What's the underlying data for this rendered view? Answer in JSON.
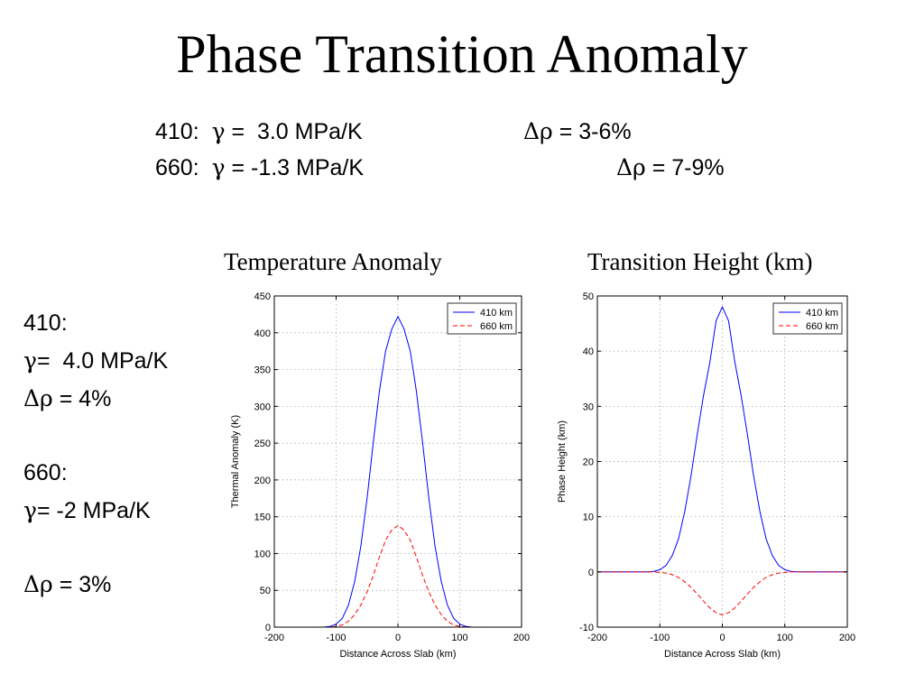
{
  "slide": {
    "title": "Phase Transition Anomaly"
  },
  "top_params": {
    "row1": {
      "prefix": "410:  ",
      "gamma_symbol": "γ",
      "gamma_text": " =  3.0 MPa/K",
      "delta_symbol": "Δρ",
      "delta_text": " = 3-6%"
    },
    "row2": {
      "prefix": "660:  ",
      "gamma_symbol": "γ",
      "gamma_text": " = -1.3 MPa/K",
      "delta_symbol": "Δρ",
      "delta_text": " = 7-9%"
    }
  },
  "side_params": {
    "l410": "410:",
    "g410_symbol": "γ",
    "g410_text": "=  4.0 MPa/K",
    "d410_symbol": "Δρ",
    "d410_text": " = 4%",
    "l660": "660:",
    "g660_symbol": "γ",
    "g660_text": "= -2 MPa/K",
    "d660_symbol": "Δρ",
    "d660_text": " = 3%"
  },
  "colors": {
    "series_410": "#0000ff",
    "series_660": "#ff0000"
  },
  "chart_data": [
    {
      "type": "line",
      "title": "Temperature Anomaly",
      "xlabel": "Distance Across Slab (km)",
      "ylabel": "Thermal Anomaly (K)",
      "xlim": [
        -200,
        200
      ],
      "ylim": [
        0,
        450
      ],
      "xticks": [
        -200,
        -100,
        0,
        100,
        200
      ],
      "yticks": [
        0,
        50,
        100,
        150,
        200,
        250,
        300,
        350,
        400,
        450
      ],
      "grid": true,
      "legend": "top-right",
      "x": [
        -200,
        -180,
        -160,
        -140,
        -120,
        -110,
        -100,
        -90,
        -80,
        -70,
        -60,
        -50,
        -40,
        -30,
        -20,
        -10,
        0,
        10,
        20,
        30,
        40,
        50,
        60,
        70,
        80,
        90,
        100,
        110,
        120,
        140,
        160,
        180,
        200
      ],
      "series": [
        {
          "name": "410 km",
          "style": "solid",
          "values": [
            0,
            0,
            0,
            0,
            0,
            1,
            4,
            12,
            30,
            62,
            110,
            175,
            250,
            320,
            375,
            405,
            422,
            405,
            375,
            320,
            250,
            175,
            110,
            62,
            30,
            12,
            4,
            1,
            0,
            0,
            0,
            0,
            0
          ]
        },
        {
          "name": "660 km",
          "style": "dashed",
          "values": [
            0,
            0,
            0,
            0,
            0,
            0,
            1,
            3,
            8,
            17,
            30,
            48,
            70,
            95,
            118,
            132,
            138,
            132,
            118,
            95,
            70,
            48,
            30,
            17,
            8,
            3,
            1,
            0,
            0,
            0,
            0,
            0,
            0
          ]
        }
      ]
    },
    {
      "type": "line",
      "title": "Transition Height (km)",
      "xlabel": "Distance Across Slab (km)",
      "ylabel": "Phase Height (km)",
      "xlim": [
        -200,
        200
      ],
      "ylim": [
        -10,
        50
      ],
      "xticks": [
        -200,
        -100,
        0,
        100,
        200
      ],
      "yticks": [
        -10,
        0,
        10,
        20,
        30,
        40,
        50
      ],
      "grid": true,
      "legend": "top-right",
      "x": [
        -200,
        -180,
        -160,
        -140,
        -120,
        -110,
        -100,
        -90,
        -80,
        -70,
        -60,
        -50,
        -40,
        -30,
        -20,
        -10,
        0,
        10,
        20,
        30,
        40,
        50,
        60,
        70,
        80,
        90,
        100,
        110,
        120,
        140,
        160,
        180,
        200
      ],
      "series": [
        {
          "name": "410 km",
          "style": "solid",
          "values": [
            0,
            0,
            0,
            0,
            0,
            0.1,
            0.4,
            1.2,
            3,
            6,
            11,
            17.5,
            25,
            32,
            38,
            45.5,
            48,
            45.5,
            38,
            32,
            25,
            17.5,
            11,
            6,
            3,
            1.2,
            0.4,
            0.1,
            0,
            0,
            0,
            0,
            0
          ]
        },
        {
          "name": "660 km",
          "style": "dashed",
          "values": [
            0,
            0,
            0,
            0,
            0,
            0,
            -0.1,
            -0.2,
            -0.5,
            -1,
            -1.8,
            -2.8,
            -4,
            -5.3,
            -6.5,
            -7.4,
            -7.8,
            -7.4,
            -6.5,
            -5.3,
            -4,
            -2.8,
            -1.8,
            -1,
            -0.5,
            -0.2,
            -0.1,
            0,
            0,
            0,
            0,
            0,
            0
          ]
        }
      ]
    }
  ]
}
